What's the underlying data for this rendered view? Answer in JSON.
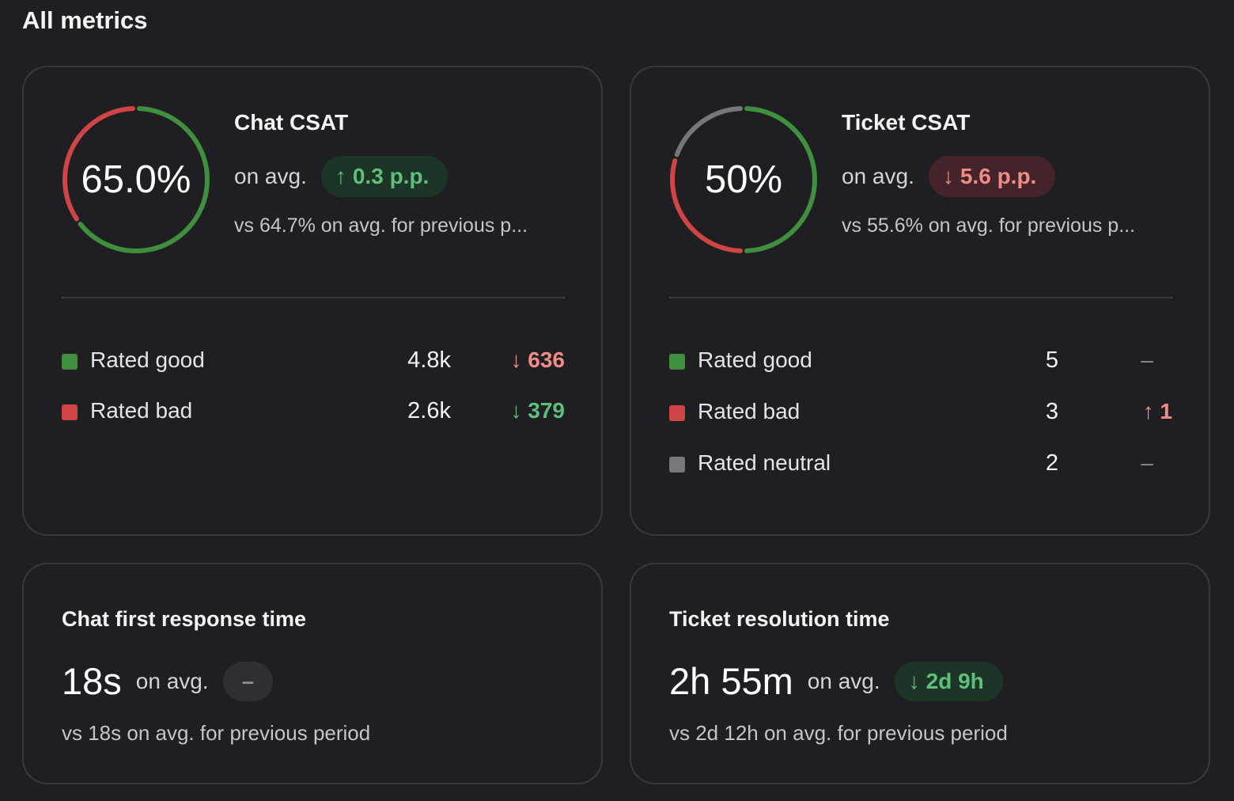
{
  "page": {
    "title": "All metrics"
  },
  "chat_csat": {
    "gauge_value": "65.0%",
    "good_fraction": 0.65,
    "bad_fraction": 0.35,
    "neutral_fraction": 0,
    "title": "Chat CSAT",
    "avg_label": "on avg.",
    "change": {
      "arrow": "↑",
      "text": "0.3 p.p.",
      "sentiment": "good"
    },
    "vs_text": "vs 64.7% on avg. for previous p...",
    "legend": [
      {
        "label": "Rated good",
        "count": "4.8k",
        "arrow": "↓",
        "delta": "636",
        "delta_sentiment": "bad",
        "color": "green"
      },
      {
        "label": "Rated bad",
        "count": "2.6k",
        "arrow": "↓",
        "delta": "379",
        "delta_sentiment": "good",
        "color": "red"
      }
    ]
  },
  "ticket_csat": {
    "gauge_value": "50%",
    "good_fraction": 0.5,
    "bad_fraction": 0.3,
    "neutral_fraction": 0.2,
    "title": "Ticket CSAT",
    "avg_label": "on avg.",
    "change": {
      "arrow": "↓",
      "text": "5.6 p.p.",
      "sentiment": "bad"
    },
    "vs_text": "vs 55.6% on avg. for previous p...",
    "legend": [
      {
        "label": "Rated good",
        "count": "5",
        "arrow": "",
        "delta": "–",
        "delta_sentiment": "neutral",
        "color": "green"
      },
      {
        "label": "Rated bad",
        "count": "3",
        "arrow": "↑",
        "delta": "1",
        "delta_sentiment": "bad",
        "color": "red"
      },
      {
        "label": "Rated neutral",
        "count": "2",
        "arrow": "",
        "delta": "–",
        "delta_sentiment": "neutral",
        "color": "gray"
      }
    ]
  },
  "chat_first_response": {
    "title": "Chat first response time",
    "value": "18s",
    "avg_label": "on avg.",
    "change": {
      "arrow": "",
      "text": "–",
      "sentiment": "neutral"
    },
    "vs_text": "vs 18s on avg. for previous period"
  },
  "ticket_resolution": {
    "title": "Ticket resolution time",
    "value": "2h 55m",
    "avg_label": "on avg.",
    "change": {
      "arrow": "↓",
      "text": "2d 9h",
      "sentiment": "good"
    },
    "vs_text": "vs 2d 12h on avg. for previous period"
  },
  "colors": {
    "good": "#3f8f3f",
    "bad": "#cf4444",
    "neutral": "#76767c"
  }
}
